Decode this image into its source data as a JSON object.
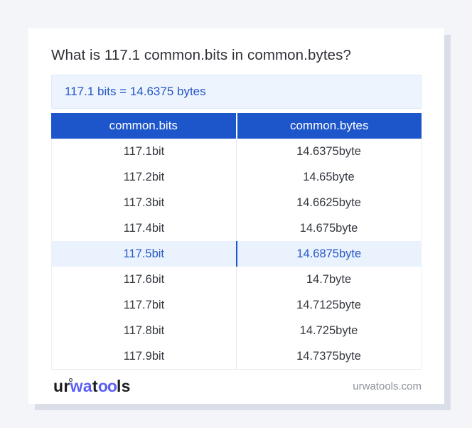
{
  "page": {
    "title": "What is 117.1 common.bits in common.bytes?"
  },
  "result": {
    "text": "117.1 bits = 14.6375 bytes"
  },
  "table": {
    "headers": [
      "common.bits",
      "common.bytes"
    ],
    "rows": [
      {
        "bits": "117.1bit",
        "bytes": "14.6375byte"
      },
      {
        "bits": "117.2bit",
        "bytes": "14.65byte"
      },
      {
        "bits": "117.3bit",
        "bytes": "14.6625byte"
      },
      {
        "bits": "117.4bit",
        "bytes": "14.675byte"
      },
      {
        "bits": "117.5bit",
        "bytes": "14.6875byte"
      },
      {
        "bits": "117.6bit",
        "bytes": "14.7byte"
      },
      {
        "bits": "117.7bit",
        "bytes": "14.7125byte"
      },
      {
        "bits": "117.8bit",
        "bytes": "14.725byte"
      },
      {
        "bits": "117.9bit",
        "bytes": "14.7375byte"
      }
    ],
    "highlighted_row_index": 4
  },
  "footer": {
    "logo": {
      "ur": "ur",
      "wa": "wa",
      "t": "t",
      "oo": "oo",
      "ls": "ls"
    },
    "site": "urwatools.com"
  },
  "colors": {
    "page_background": "#f3f5f9",
    "card_background": "#ffffff",
    "card_shadow": "#d9dee9",
    "header_blue": "#1d55cb",
    "result_box_background": "#edf4fd",
    "result_text_blue": "#2458c6",
    "highlight_row_background": "#e9f2fd",
    "highlight_text_blue": "#2a5ac6",
    "logo_accent_blue": "#5a5ff2"
  }
}
